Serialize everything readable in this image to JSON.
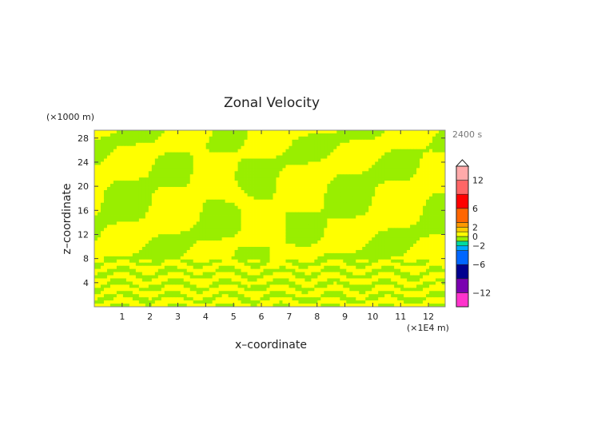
{
  "chart_data": {
    "type": "heatmap",
    "title": "Zonal Velocity",
    "xlabel": "x–coordinate",
    "ylabel": "z–coordinate",
    "x_unit": "(×1E4 m)",
    "y_unit": "(×1000 m)",
    "time_label": "2400 s",
    "xlim": [
      0,
      12.6
    ],
    "ylim": [
      0,
      29.3
    ],
    "x_ticks": [
      "1",
      "2",
      "3",
      "4",
      "5",
      "6",
      "7",
      "8",
      "9",
      "10",
      "11",
      "12"
    ],
    "y_ticks": [
      "4",
      "8",
      "12",
      "16",
      "20",
      "24",
      "28"
    ],
    "field_value_range": [
      -1,
      1
    ],
    "colorbar": {
      "extend": "max",
      "levels": [
        -15,
        -12,
        -9,
        -6,
        -3,
        -2,
        -1,
        0,
        1,
        2,
        3,
        6,
        9,
        12,
        15
      ],
      "colors": [
        "#ff33cc",
        "#7a00b0",
        "#00008f",
        "#0066ff",
        "#00aaff",
        "#00dca0",
        "#99ee00",
        "#ffff00",
        "#ffcc00",
        "#ff9900",
        "#ff6600",
        "#ff0000",
        "#ff6666",
        "#ffaaaa"
      ],
      "tick_labels": [
        "12",
        "6",
        "2",
        "0",
        "−2",
        "−6",
        "−12"
      ],
      "tick_values": [
        12,
        6,
        2,
        0,
        -2,
        -6,
        -12
      ]
    }
  }
}
